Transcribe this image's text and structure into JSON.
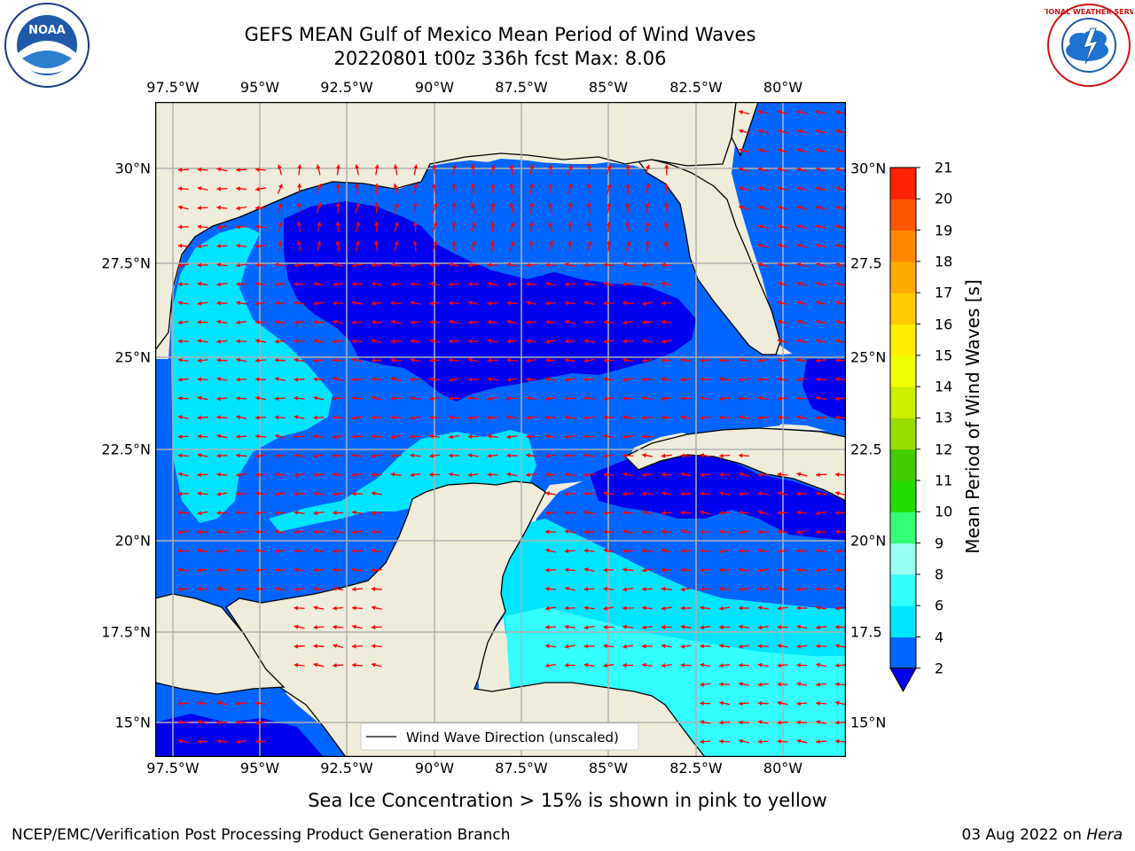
{
  "title": {
    "line1": "GEFS MEAN Gulf of Mexico Mean Period of Wind Waves",
    "line2": "20220801 t00z 336h fcst   Max: 8.06"
  },
  "axes": {
    "lon_labels": [
      "97.5°W",
      "95°W",
      "92.5°W",
      "90°W",
      "87.5°W",
      "85°W",
      "82.5°W",
      "80°W"
    ],
    "lat_labels_left": [
      "30°N",
      "27.5°N",
      "25°N",
      "22.5°N",
      "20°N",
      "17.5°N",
      "15°N"
    ],
    "lat_labels_right": [
      "30°N",
      "27.5",
      "25°N",
      "22.5",
      "20°N",
      "17.5",
      "15°N"
    ]
  },
  "legend": {
    "label": "Wind Wave Direction (unscaled)"
  },
  "colorbar": {
    "label": "Mean Period of Wind Waves [s]",
    "ticks": [
      "2",
      "4",
      "6",
      "8",
      "9",
      "10",
      "11",
      "12",
      "13",
      "14",
      "15",
      "16",
      "17",
      "18",
      "19",
      "20",
      "21"
    ],
    "colors": [
      "#0066ff",
      "#00e5ff",
      "#33ffff",
      "#99fff0",
      "#33ff77",
      "#22dd00",
      "#44cc00",
      "#99dd00",
      "#ccee00",
      "#eeff00",
      "#ffee00",
      "#ffcc00",
      "#ffaa00",
      "#ff8800",
      "#ff5500",
      "#ff2200",
      "#ff0000"
    ],
    "under_color": "#0000ee"
  },
  "map_colors": {
    "land": "#efecdb",
    "deep_blue": "#0000ee",
    "blue": "#0066ff",
    "cyan": "#00e5ff",
    "light_cyan": "#33ffff",
    "arrow": "#ff0000"
  },
  "subtitle": "Sea Ice Concentration > 15% is shown in pink to yellow",
  "footer": {
    "credit": "NCEP/EMC/Verification Post Processing Product Generation Branch",
    "date_prefix": "03 Aug 2022 on ",
    "machine": "Hera"
  },
  "logos": {
    "left": "NOAA",
    "right": "NATIONAL WEATHER SERVICE"
  }
}
